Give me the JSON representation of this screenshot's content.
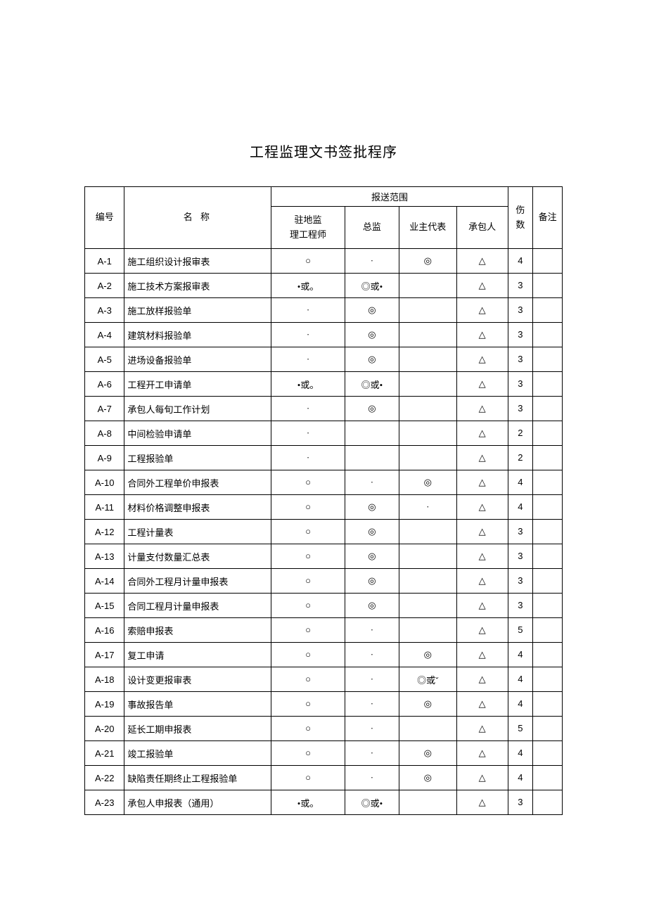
{
  "title": "工程监理文书签批程序",
  "columns": {
    "num": "编号",
    "name": "名 称",
    "scope_group": "报送范围",
    "eng1": "驻地监\n理工程师",
    "eng2": "总监",
    "eng3": "业主代表",
    "eng4": "承包人",
    "count": "伤\n数",
    "remark": "备注"
  },
  "rows": [
    {
      "num": "A-1",
      "name": "施工组织设计报审表",
      "e1": "○",
      "e2": "·",
      "e3": "◎",
      "e4": "△",
      "cnt": "4",
      "rem": ""
    },
    {
      "num": "A-2",
      "name": "施工技术方案报审表",
      "e1": "•或。",
      "e2": "◎或•",
      "e3": "",
      "e4": "△",
      "cnt": "3",
      "rem": ""
    },
    {
      "num": "A-3",
      "name": "施工放样报验单",
      "e1": "·",
      "e2": "◎",
      "e3": "",
      "e4": "△",
      "cnt": "3",
      "rem": ""
    },
    {
      "num": "A-4",
      "name": "建筑材料报验单",
      "e1": "·",
      "e2": "◎",
      "e3": "",
      "e4": "△",
      "cnt": "3",
      "rem": ""
    },
    {
      "num": "A-5",
      "name": "进场设备报验单",
      "e1": "·",
      "e2": "◎",
      "e3": "",
      "e4": "△",
      "cnt": "3",
      "rem": ""
    },
    {
      "num": "A-6",
      "name": "工程开工申请单",
      "e1": "•或。",
      "e2": "◎或•",
      "e3": "",
      "e4": "△",
      "cnt": "3",
      "rem": ""
    },
    {
      "num": "A-7",
      "name": "承包人每旬工作计划",
      "e1": "·",
      "e2": "◎",
      "e3": "",
      "e4": "△",
      "cnt": "3",
      "rem": ""
    },
    {
      "num": "A-8",
      "name": "中间检验申请单",
      "e1": "·",
      "e2": "",
      "e3": "",
      "e4": "△",
      "cnt": "2",
      "rem": ""
    },
    {
      "num": "A-9",
      "name": "工程报验单",
      "e1": "·",
      "e2": "",
      "e3": "",
      "e4": "△",
      "cnt": "2",
      "rem": ""
    },
    {
      "num": "A-10",
      "name": "合同外工程单价申报表",
      "e1": "○",
      "e2": "·",
      "e3": "◎",
      "e4": "△",
      "cnt": "4",
      "rem": ""
    },
    {
      "num": "A-11",
      "name": "材料价格调整申报表",
      "e1": "○",
      "e2": "◎",
      "e3": "·",
      "e4": "△",
      "cnt": "4",
      "rem": ""
    },
    {
      "num": "A-12",
      "name": "工程计量表",
      "e1": "○",
      "e2": "◎",
      "e3": "",
      "e4": "△",
      "cnt": "3",
      "rem": ""
    },
    {
      "num": "A-13",
      "name": "计量支付数量汇总表",
      "e1": "○",
      "e2": "◎",
      "e3": "",
      "e4": "△",
      "cnt": "3",
      "rem": ""
    },
    {
      "num": "A-14",
      "name": "合同外工程月计量申报表",
      "e1": "○",
      "e2": "◎",
      "e3": "",
      "e4": "△",
      "cnt": "3",
      "rem": ""
    },
    {
      "num": "A-15",
      "name": "合同工程月计量申报表",
      "e1": "○",
      "e2": "◎",
      "e3": "",
      "e4": "△",
      "cnt": "3",
      "rem": ""
    },
    {
      "num": "A-16",
      "name": "索赔申报表",
      "e1": "○",
      "e2": "·",
      "e3": "",
      "e4": "△",
      "cnt": "5",
      "rem": ""
    },
    {
      "num": "A-17",
      "name": "复工申请",
      "e1": "○",
      "e2": "·",
      "e3": "◎",
      "e4": "△",
      "cnt": "4",
      "rem": ""
    },
    {
      "num": "A-18",
      "name": "设计变更报审表",
      "e1": "○",
      "e2": "·",
      "e3": "◎或ˇ",
      "e4": "△",
      "cnt": "4",
      "rem": ""
    },
    {
      "num": "A-19",
      "name": "事故报告单",
      "e1": "○",
      "e2": "·",
      "e3": "◎",
      "e4": "△",
      "cnt": "4",
      "rem": ""
    },
    {
      "num": "A-20",
      "name": "延长工期申报表",
      "e1": "○",
      "e2": "·",
      "e3": "",
      "e4": "△",
      "cnt": "5",
      "rem": ""
    },
    {
      "num": "A-21",
      "name": "竣工报验单",
      "e1": "○",
      "e2": "·",
      "e3": "◎",
      "e4": "△",
      "cnt": "4",
      "rem": ""
    },
    {
      "num": "A-22",
      "name": "缺陷责任期终止工程报验单",
      "e1": "○",
      "e2": "·",
      "e3": "◎",
      "e4": "△",
      "cnt": "4",
      "rem": ""
    },
    {
      "num": "A-23",
      "name": "承包人申报表（通用）",
      "e1": "•或。",
      "e2": "◎或•",
      "e3": "",
      "e4": "△",
      "cnt": "3",
      "rem": ""
    }
  ]
}
